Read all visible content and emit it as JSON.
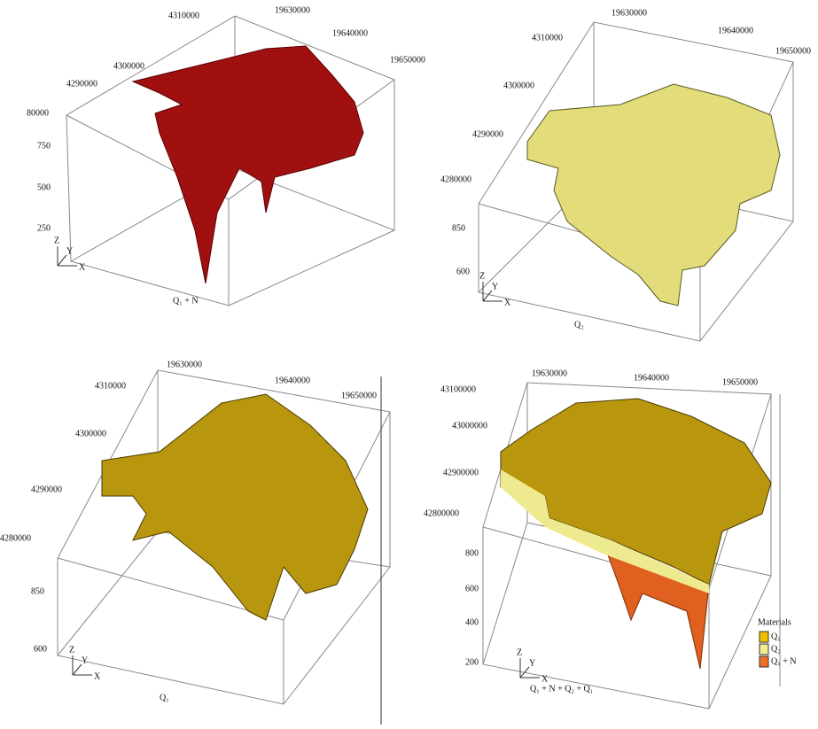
{
  "panels": [
    {
      "caption": "Q₁ + N",
      "x_labels": [
        "19630000",
        "19640000",
        "19650000"
      ],
      "y_labels": [
        "4310000",
        "4300000",
        "4290000"
      ],
      "z_labels": [
        "80000",
        "750",
        "500",
        "250"
      ],
      "axes": [
        "Z",
        "Y",
        "X"
      ]
    },
    {
      "caption": "Q₂",
      "x_labels": [
        "19630000",
        "19640000",
        "19650000"
      ],
      "y_labels": [
        "4310000",
        "4300000",
        "4290000",
        "4280000"
      ],
      "z_labels": [
        "850",
        "600"
      ],
      "axes": [
        "Z",
        "Y",
        "X"
      ]
    },
    {
      "caption": "Q₁",
      "x_labels": [
        "19630000",
        "19640000",
        "19650000"
      ],
      "y_labels": [
        "4310000",
        "4300000",
        "4290000",
        "4280000"
      ],
      "z_labels": [
        "850",
        "600"
      ],
      "axes": [
        "Z",
        "Y",
        "X"
      ]
    },
    {
      "caption": "Q₁ + N + Q₂ + Q₁",
      "x_labels": [
        "19630000",
        "19640000",
        "19650000"
      ],
      "y_labels": [
        "43100000",
        "43000000",
        "42900000",
        "42800000"
      ],
      "z_labels": [
        "800",
        "600",
        "400",
        "200"
      ],
      "axes": [
        "Z",
        "Y",
        "X"
      ]
    }
  ],
  "legend": {
    "title": "Materials",
    "items": [
      "Q₁",
      "Q₂",
      "Q₁ + N"
    ]
  }
}
